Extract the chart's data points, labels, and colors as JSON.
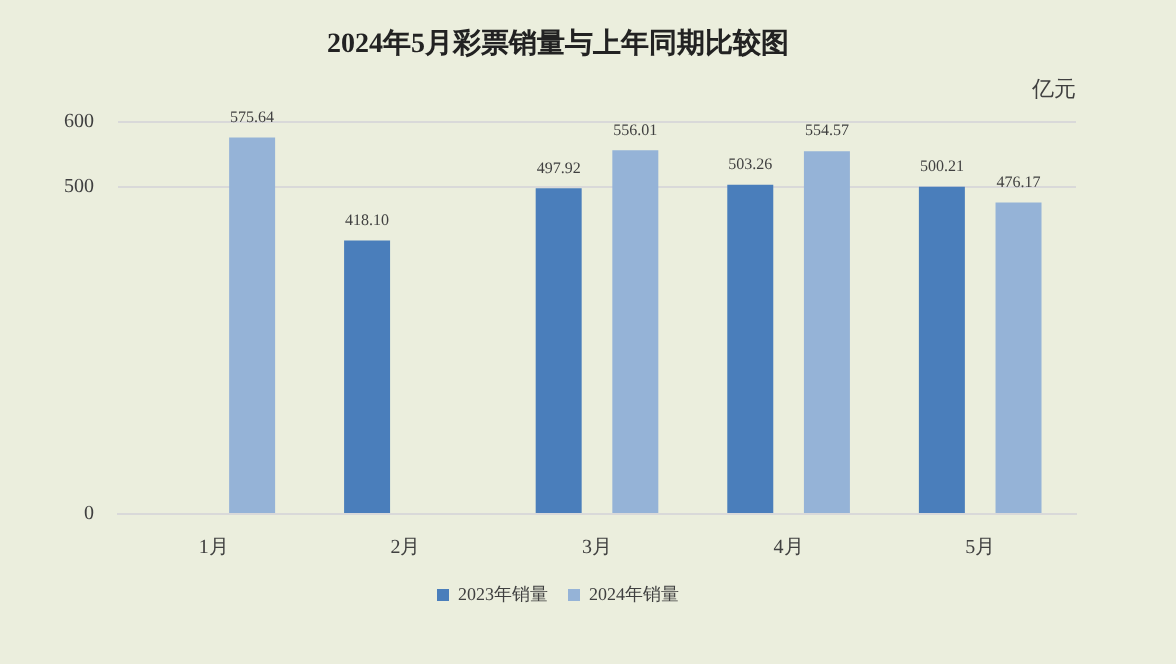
{
  "chart_data": {
    "type": "bar",
    "title": "2024年5月彩票销量与上年同期比较图",
    "ylabel": "亿元",
    "categories": [
      "1月",
      "2月",
      "3月",
      "4月",
      "5月"
    ],
    "series": [
      {
        "name": "2023年销量",
        "color": "#4a7ebb",
        "values": [
          null,
          418.1,
          497.92,
          503.26,
          500.21
        ],
        "value_labels": [
          null,
          "418.10",
          "497.92",
          "503.26",
          "500.21"
        ]
      },
      {
        "name": "2024年销量",
        "color": "#95b3d7",
        "values": [
          575.64,
          null,
          556.01,
          554.57,
          476.17
        ],
        "value_labels": [
          "575.64",
          null,
          "556.01",
          "554.57",
          "476.17"
        ]
      }
    ],
    "ylim": [
      0,
      600
    ],
    "yticks": [
      0,
      500,
      600
    ],
    "grid": "y",
    "legend": "bottom"
  }
}
